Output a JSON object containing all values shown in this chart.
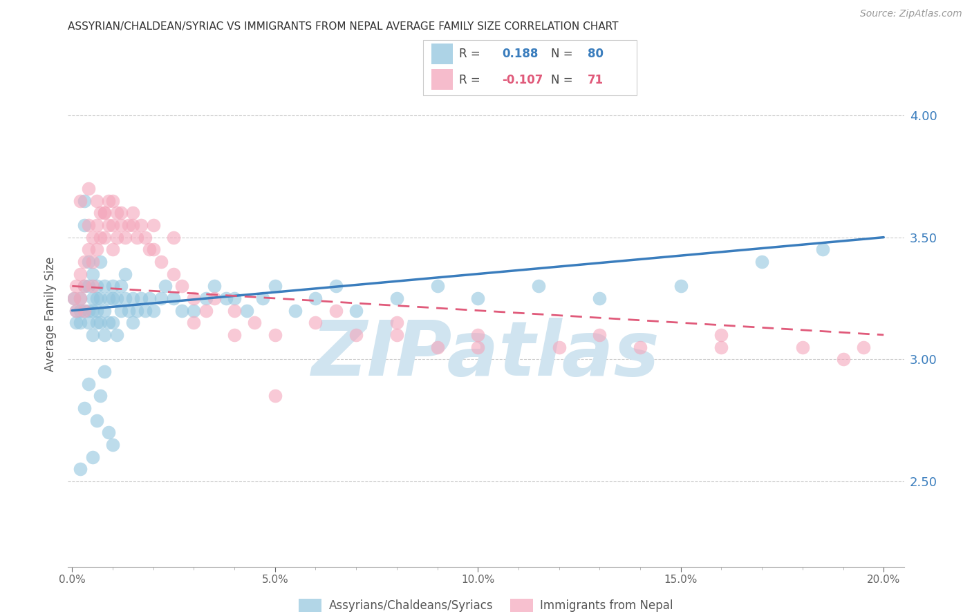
{
  "title": "ASSYRIAN/CHALDEAN/SYRIAC VS IMMIGRANTS FROM NEPAL AVERAGE FAMILY SIZE CORRELATION CHART",
  "source": "Source: ZipAtlas.com",
  "ylabel": "Average Family Size",
  "xlabel_ticks": [
    "0.0%",
    "5.0%",
    "10.0%",
    "15.0%",
    "20.0%"
  ],
  "xlabel_vals": [
    0.0,
    0.05,
    0.1,
    0.15,
    0.2
  ],
  "yright_ticks": [
    2.5,
    3.0,
    3.5,
    4.0
  ],
  "ylim": [
    2.15,
    4.22
  ],
  "xlim": [
    -0.001,
    0.205
  ],
  "legend_blue_r": "0.188",
  "legend_blue_n": "80",
  "legend_pink_r": "-0.107",
  "legend_pink_n": "71",
  "blue_color": "#92c5de",
  "pink_color": "#f4a6bb",
  "trend_blue": "#3a7dbd",
  "trend_pink": "#e05a7a",
  "watermark": "ZIPatlas",
  "watermark_color": "#d0e4f0",
  "blue_trend_x0": 0.0,
  "blue_trend_y0": 3.2,
  "blue_trend_x1": 0.2,
  "blue_trend_y1": 3.5,
  "pink_trend_x0": 0.0,
  "pink_trend_y0": 3.3,
  "pink_trend_x1": 0.2,
  "pink_trend_y1": 3.1,
  "blue_scatter_x": [
    0.0005,
    0.001,
    0.001,
    0.002,
    0.002,
    0.002,
    0.003,
    0.003,
    0.003,
    0.003,
    0.004,
    0.004,
    0.004,
    0.004,
    0.005,
    0.005,
    0.005,
    0.005,
    0.006,
    0.006,
    0.006,
    0.006,
    0.007,
    0.007,
    0.007,
    0.008,
    0.008,
    0.008,
    0.009,
    0.009,
    0.01,
    0.01,
    0.01,
    0.011,
    0.011,
    0.012,
    0.012,
    0.013,
    0.013,
    0.014,
    0.015,
    0.015,
    0.016,
    0.017,
    0.018,
    0.019,
    0.02,
    0.022,
    0.023,
    0.025,
    0.027,
    0.03,
    0.033,
    0.035,
    0.038,
    0.04,
    0.043,
    0.047,
    0.05,
    0.055,
    0.06,
    0.065,
    0.07,
    0.08,
    0.09,
    0.1,
    0.115,
    0.13,
    0.15,
    0.17,
    0.002,
    0.003,
    0.004,
    0.005,
    0.006,
    0.007,
    0.008,
    0.009,
    0.01,
    0.185
  ],
  "blue_scatter_y": [
    3.25,
    3.2,
    3.15,
    3.25,
    3.2,
    3.15,
    3.65,
    3.55,
    3.3,
    3.2,
    3.4,
    3.3,
    3.2,
    3.15,
    3.35,
    3.25,
    3.2,
    3.1,
    3.3,
    3.25,
    3.2,
    3.15,
    3.4,
    3.25,
    3.15,
    3.3,
    3.2,
    3.1,
    3.25,
    3.15,
    3.3,
    3.25,
    3.15,
    3.25,
    3.1,
    3.3,
    3.2,
    3.35,
    3.25,
    3.2,
    3.25,
    3.15,
    3.2,
    3.25,
    3.2,
    3.25,
    3.2,
    3.25,
    3.3,
    3.25,
    3.2,
    3.2,
    3.25,
    3.3,
    3.25,
    3.25,
    3.2,
    3.25,
    3.3,
    3.2,
    3.25,
    3.3,
    3.2,
    3.25,
    3.3,
    3.25,
    3.3,
    3.25,
    3.3,
    3.4,
    2.55,
    2.8,
    2.9,
    2.6,
    2.75,
    2.85,
    2.95,
    2.7,
    2.65,
    3.45
  ],
  "pink_scatter_x": [
    0.0005,
    0.001,
    0.001,
    0.002,
    0.002,
    0.003,
    0.003,
    0.003,
    0.004,
    0.004,
    0.005,
    0.005,
    0.005,
    0.006,
    0.006,
    0.007,
    0.007,
    0.008,
    0.008,
    0.009,
    0.009,
    0.01,
    0.01,
    0.011,
    0.011,
    0.012,
    0.013,
    0.014,
    0.015,
    0.016,
    0.017,
    0.018,
    0.019,
    0.02,
    0.022,
    0.025,
    0.027,
    0.03,
    0.033,
    0.035,
    0.04,
    0.045,
    0.05,
    0.06,
    0.07,
    0.08,
    0.09,
    0.1,
    0.12,
    0.14,
    0.16,
    0.18,
    0.195,
    0.002,
    0.004,
    0.006,
    0.008,
    0.01,
    0.012,
    0.015,
    0.02,
    0.025,
    0.03,
    0.04,
    0.05,
    0.065,
    0.08,
    0.1,
    0.13,
    0.16,
    0.19
  ],
  "pink_scatter_y": [
    3.25,
    3.3,
    3.2,
    3.35,
    3.25,
    3.4,
    3.3,
    3.2,
    3.55,
    3.45,
    3.5,
    3.4,
    3.3,
    3.55,
    3.45,
    3.6,
    3.5,
    3.6,
    3.5,
    3.65,
    3.55,
    3.55,
    3.45,
    3.6,
    3.5,
    3.55,
    3.5,
    3.55,
    3.55,
    3.5,
    3.55,
    3.5,
    3.45,
    3.45,
    3.4,
    3.35,
    3.3,
    3.25,
    3.2,
    3.25,
    3.2,
    3.15,
    3.1,
    3.15,
    3.1,
    3.1,
    3.05,
    3.05,
    3.05,
    3.05,
    3.1,
    3.05,
    3.05,
    3.65,
    3.7,
    3.65,
    3.6,
    3.65,
    3.6,
    3.6,
    3.55,
    3.5,
    3.15,
    3.1,
    2.85,
    3.2,
    3.15,
    3.1,
    3.1,
    3.05,
    3.0
  ]
}
